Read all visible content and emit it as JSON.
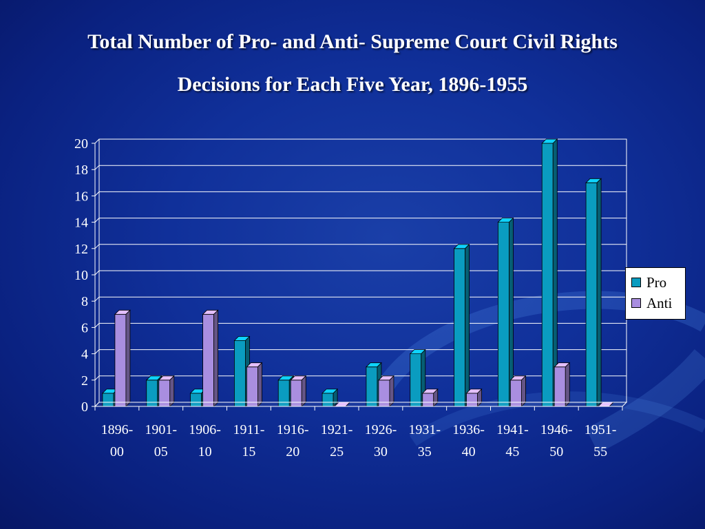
{
  "slide": {
    "title_line1": "Total Number of Pro- and Anti- Supreme Court Civil Rights",
    "title_line2": "Decisions for Each Five Year, 1896-1955",
    "background_color": "#10309a"
  },
  "chart_data": {
    "type": "bar",
    "title": "Total Number of Pro- and Anti- Supreme Court Civil Rights Decisions for Each Five Year, 1896-1955",
    "xlabel": "",
    "ylabel": "",
    "ylim": [
      0,
      20
    ],
    "yticks": [
      0,
      2,
      4,
      6,
      8,
      10,
      12,
      14,
      16,
      18,
      20
    ],
    "grid": true,
    "legend": "right",
    "categories": [
      [
        "1896-",
        "00"
      ],
      [
        "1901-",
        "05"
      ],
      [
        "1906-",
        "10"
      ],
      [
        "1911-",
        "15"
      ],
      [
        "1916-",
        "20"
      ],
      [
        "1921-",
        "25"
      ],
      [
        "1926-",
        "30"
      ],
      [
        "1931-",
        "35"
      ],
      [
        "1936-",
        "40"
      ],
      [
        "1941-",
        "45"
      ],
      [
        "1946-",
        "50"
      ],
      [
        "1951-",
        "55"
      ]
    ],
    "series": [
      {
        "name": "Pro",
        "color": "#0a9cc0",
        "values": [
          1,
          2,
          1,
          5,
          2,
          1,
          3,
          4,
          12,
          14,
          20,
          17
        ]
      },
      {
        "name": "Anti",
        "color": "#a98ee0",
        "values": [
          7,
          2,
          7,
          3,
          2,
          0,
          2,
          1,
          1,
          2,
          3,
          0
        ]
      }
    ]
  }
}
